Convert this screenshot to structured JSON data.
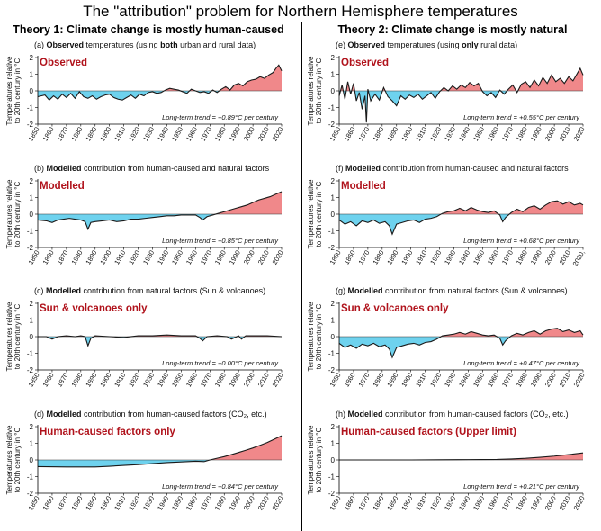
{
  "title": "The \"attribution\" problem for Northern Hemisphere temperatures",
  "theories": [
    {
      "title": "Theory 1: Climate change is mostly human-caused"
    },
    {
      "title": "Theory 2: Climate change is mostly natural"
    }
  ],
  "colors": {
    "positive": "#f0888a",
    "negative": "#6ed2ee",
    "line": "#1a1a1a",
    "badge": "#b0121b"
  },
  "chart_data": [
    {
      "type": "area",
      "id": "a",
      "title_prefix": "(a) ",
      "title_bold": "Observed",
      "title_rest": " temperatures (using ",
      "title_bold2": "both",
      "title_rest2": " urban and rural data)",
      "badge": "Observed",
      "ylabel": [
        "Temperatures relative",
        "to 20th century in °C"
      ],
      "trend": "Long-term trend = +0.89°C per century",
      "ylim": [
        -2,
        2
      ],
      "yticks": [
        2,
        1,
        0,
        -1,
        -2
      ],
      "xlim": [
        1850,
        2020
      ],
      "xticks": [
        "1850",
        "1860",
        "1870",
        "1880",
        "1890",
        "1900",
        "1910",
        "1920",
        "1930",
        "1940",
        "1950",
        "1960",
        "1970",
        "1980",
        "1990",
        "2000",
        "2010",
        "2020"
      ],
      "x": [
        1850,
        1855,
        1858,
        1861,
        1864,
        1867,
        1870,
        1873,
        1876,
        1879,
        1882,
        1885,
        1888,
        1891,
        1894,
        1897,
        1900,
        1903,
        1906,
        1909,
        1912,
        1915,
        1918,
        1921,
        1924,
        1927,
        1930,
        1933,
        1936,
        1939,
        1942,
        1945,
        1948,
        1951,
        1954,
        1957,
        1960,
        1963,
        1966,
        1969,
        1972,
        1975,
        1978,
        1981,
        1984,
        1987,
        1990,
        1993,
        1996,
        1999,
        2002,
        2005,
        2008,
        2011,
        2014,
        2016,
        2018,
        2020
      ],
      "values": [
        -0.35,
        -0.25,
        -0.55,
        -0.3,
        -0.5,
        -0.2,
        -0.4,
        -0.15,
        -0.45,
        -0.05,
        -0.35,
        -0.45,
        -0.3,
        -0.5,
        -0.35,
        -0.25,
        -0.2,
        -0.4,
        -0.5,
        -0.55,
        -0.4,
        -0.25,
        -0.45,
        -0.2,
        -0.3,
        -0.1,
        -0.05,
        -0.15,
        -0.1,
        0.05,
        0.15,
        0.1,
        0.05,
        -0.05,
        -0.15,
        0.1,
        0.0,
        -0.1,
        -0.05,
        -0.15,
        0.05,
        -0.1,
        0.1,
        0.25,
        0.05,
        0.35,
        0.45,
        0.3,
        0.55,
        0.65,
        0.7,
        0.85,
        0.75,
        0.95,
        1.1,
        1.35,
        1.55,
        1.2
      ]
    },
    {
      "type": "area",
      "id": "b",
      "title_prefix": "(b) ",
      "title_bold": "Modelled",
      "title_rest": " contribution from human-caused and natural factors",
      "title_bold2": "",
      "title_rest2": "",
      "badge": "Modelled",
      "ylabel": [
        "Temperatures relative",
        "to 20th century in °C"
      ],
      "trend": "Long-term trend = +0.85°C per century",
      "ylim": [
        -2,
        2
      ],
      "yticks": [
        2,
        1,
        0,
        -1,
        -2
      ],
      "xlim": [
        1850,
        2020
      ],
      "xticks": [
        "1850",
        "1860",
        "1870",
        "1880",
        "1890",
        "1900",
        "1910",
        "1920",
        "1930",
        "1940",
        "1950",
        "1960",
        "1970",
        "1980",
        "1990",
        "2000",
        "2010",
        "2020"
      ],
      "x": [
        1850,
        1856,
        1860,
        1864,
        1868,
        1872,
        1876,
        1880,
        1883,
        1885,
        1887,
        1890,
        1895,
        1900,
        1905,
        1910,
        1915,
        1920,
        1925,
        1930,
        1935,
        1940,
        1945,
        1950,
        1955,
        1960,
        1963,
        1965,
        1968,
        1972,
        1976,
        1980,
        1984,
        1988,
        1992,
        1996,
        2000,
        2004,
        2008,
        2012,
        2016,
        2020
      ],
      "values": [
        -0.35,
        -0.4,
        -0.5,
        -0.35,
        -0.3,
        -0.25,
        -0.3,
        -0.35,
        -0.45,
        -0.9,
        -0.5,
        -0.45,
        -0.4,
        -0.35,
        -0.45,
        -0.4,
        -0.3,
        -0.3,
        -0.25,
        -0.2,
        -0.15,
        -0.1,
        -0.1,
        -0.05,
        -0.05,
        -0.05,
        -0.2,
        -0.35,
        -0.15,
        -0.05,
        0.05,
        0.15,
        0.25,
        0.35,
        0.45,
        0.55,
        0.7,
        0.85,
        0.95,
        1.05,
        1.2,
        1.35
      ]
    },
    {
      "type": "area",
      "id": "c",
      "title_prefix": "(c) ",
      "title_bold": "Modelled",
      "title_rest": " contribution from natural factors (Sun & volcanoes)",
      "title_bold2": "",
      "title_rest2": "",
      "badge": "Sun & volcanoes only",
      "ylabel": [
        "Temperatures relative",
        "to 20th century in °C"
      ],
      "trend": "Long-term trend = +0.00°C per century",
      "ylim": [
        -2,
        2
      ],
      "yticks": [
        2,
        1,
        0,
        -1,
        -2
      ],
      "xlim": [
        1850,
        2020
      ],
      "xticks": [
        "1850",
        "1860",
        "1870",
        "1880",
        "1890",
        "1900",
        "1910",
        "1920",
        "1930",
        "1940",
        "1950",
        "1960",
        "1970",
        "1980",
        "1990",
        "2000",
        "2010",
        "2020"
      ],
      "x": [
        1850,
        1856,
        1860,
        1864,
        1870,
        1876,
        1880,
        1883,
        1885,
        1887,
        1890,
        1900,
        1910,
        1920,
        1930,
        1940,
        1950,
        1960,
        1963,
        1965,
        1968,
        1975,
        1982,
        1985,
        1990,
        1992,
        1995,
        2000,
        2010,
        2020
      ],
      "values": [
        0.0,
        0.0,
        -0.15,
        0.0,
        0.05,
        0.0,
        0.05,
        0.0,
        -0.55,
        -0.1,
        0.05,
        0.0,
        -0.05,
        0.05,
        0.05,
        0.1,
        0.05,
        0.05,
        -0.1,
        -0.25,
        0.0,
        0.05,
        0.0,
        -0.15,
        0.05,
        -0.15,
        0.05,
        0.05,
        0.05,
        0.0
      ]
    },
    {
      "type": "area",
      "id": "d",
      "title_prefix": "(d) ",
      "title_bold": "Modelled",
      "title_rest": " contribution from human-caused factors (CO₂, etc.)",
      "title_bold2": "",
      "title_rest2": "",
      "badge": "Human-caused factors only",
      "ylabel": [
        "Temperatures relative",
        "to 20th century in °C"
      ],
      "trend": "Long-term trend = +0.84°C per century",
      "ylim": [
        -2,
        2
      ],
      "yticks": [
        2,
        1,
        0,
        -1,
        -2
      ],
      "xlim": [
        1850,
        2020
      ],
      "xticks": [
        "1850",
        "1860",
        "1870",
        "1880",
        "1890",
        "1900",
        "1910",
        "1920",
        "1930",
        "1940",
        "1950",
        "1960",
        "1970",
        "1980",
        "1990",
        "2000",
        "2010",
        "2020"
      ],
      "x": [
        1850,
        1870,
        1890,
        1900,
        1910,
        1920,
        1930,
        1940,
        1950,
        1960,
        1966,
        1970,
        1975,
        1980,
        1985,
        1990,
        1995,
        2000,
        2005,
        2010,
        2015,
        2020
      ],
      "values": [
        -0.4,
        -0.42,
        -0.42,
        -0.38,
        -0.33,
        -0.28,
        -0.22,
        -0.16,
        -0.12,
        -0.08,
        -0.1,
        0.0,
        0.1,
        0.2,
        0.32,
        0.45,
        0.58,
        0.72,
        0.88,
        1.05,
        1.25,
        1.45
      ]
    },
    {
      "type": "area",
      "id": "e",
      "title_prefix": "(e) ",
      "title_bold": "Observed",
      "title_rest": " temperatures (using ",
      "title_bold2": "only",
      "title_rest2": " rural data)",
      "badge": "Observed",
      "ylabel": [
        "Temperatures relative",
        "to 20th century in °C"
      ],
      "trend": "Long-term trend = +0.55°C per century",
      "ylim": [
        -2,
        2
      ],
      "yticks": [
        2,
        1,
        0,
        -1,
        -2
      ],
      "xlim": [
        1850,
        2020
      ],
      "xticks": [
        "1850",
        "1860",
        "1870",
        "1880",
        "1890",
        "1900",
        "1910",
        "1920",
        "1930",
        "1940",
        "1950",
        "1960",
        "1970",
        "1980",
        "1990",
        "2000",
        "2010",
        "2020"
      ],
      "x": [
        1850,
        1852,
        1854,
        1856,
        1858,
        1860,
        1862,
        1864,
        1866,
        1868,
        1869,
        1870,
        1872,
        1875,
        1878,
        1881,
        1884,
        1887,
        1890,
        1893,
        1896,
        1899,
        1902,
        1905,
        1908,
        1911,
        1914,
        1917,
        1920,
        1923,
        1926,
        1929,
        1932,
        1935,
        1938,
        1941,
        1944,
        1947,
        1950,
        1953,
        1956,
        1959,
        1962,
        1965,
        1968,
        1971,
        1974,
        1977,
        1980,
        1983,
        1986,
        1989,
        1992,
        1995,
        1998,
        2001,
        2004,
        2007,
        2010,
        2013,
        2016,
        2018,
        2020
      ],
      "values": [
        -0.3,
        0.35,
        -0.5,
        0.55,
        -0.2,
        0.45,
        -0.6,
        -0.1,
        -1.1,
        -0.3,
        -1.9,
        0.1,
        -0.6,
        -0.2,
        -0.55,
        0.2,
        -0.35,
        -0.6,
        -0.9,
        -0.3,
        -0.5,
        -0.25,
        -0.4,
        -0.2,
        -0.5,
        -0.3,
        -0.1,
        -0.45,
        -0.05,
        0.2,
        0.0,
        0.3,
        0.1,
        0.35,
        0.2,
        0.5,
        0.3,
        0.45,
        -0.05,
        -0.3,
        -0.1,
        -0.4,
        0.05,
        -0.2,
        0.1,
        0.35,
        -0.1,
        0.4,
        0.55,
        0.2,
        0.65,
        0.3,
        0.8,
        0.45,
        0.95,
        0.55,
        0.75,
        0.45,
        0.85,
        0.6,
        1.05,
        1.35,
        0.95
      ]
    },
    {
      "type": "area",
      "id": "f",
      "title_prefix": "(f) ",
      "title_bold": "Modelled",
      "title_rest": " contribution from human-caused and natural factors",
      "title_bold2": "",
      "title_rest2": "",
      "badge": "Modelled",
      "ylabel": [
        "Temperatures relative",
        "to 20th century in °C"
      ],
      "trend": "Long-term trend = +0.68°C per century",
      "ylim": [
        -2,
        2
      ],
      "yticks": [
        2,
        1,
        0,
        -1,
        -2
      ],
      "xlim": [
        1850,
        2020
      ],
      "xticks": [
        "1850",
        "1860",
        "1870",
        "1880",
        "1890",
        "1900",
        "1910",
        "1920",
        "1930",
        "1940",
        "1950",
        "1960",
        "1970",
        "1980",
        "1990",
        "2000",
        "2010",
        "2020,"
      ],
      "x": [
        1850,
        1854,
        1858,
        1862,
        1866,
        1870,
        1874,
        1878,
        1882,
        1885,
        1887,
        1890,
        1894,
        1898,
        1902,
        1906,
        1910,
        1914,
        1918,
        1922,
        1926,
        1930,
        1934,
        1938,
        1942,
        1946,
        1950,
        1954,
        1958,
        1962,
        1964,
        1966,
        1970,
        1974,
        1978,
        1982,
        1986,
        1990,
        1994,
        1998,
        2002,
        2006,
        2010,
        2014,
        2018,
        2020
      ],
      "values": [
        -0.35,
        -0.6,
        -0.45,
        -0.7,
        -0.4,
        -0.5,
        -0.35,
        -0.55,
        -0.45,
        -0.7,
        -1.2,
        -0.6,
        -0.5,
        -0.4,
        -0.35,
        -0.5,
        -0.3,
        -0.25,
        -0.15,
        0.05,
        0.15,
        0.2,
        0.35,
        0.2,
        0.4,
        0.25,
        0.15,
        0.1,
        0.2,
        -0.05,
        -0.45,
        -0.2,
        0.1,
        0.3,
        0.15,
        0.4,
        0.5,
        0.3,
        0.55,
        0.75,
        0.8,
        0.6,
        0.75,
        0.55,
        0.65,
        0.55
      ]
    },
    {
      "type": "area",
      "id": "g",
      "title_prefix": "(g) ",
      "title_bold": "Modelled",
      "title_rest": " contribution from natural factors (Sun & volcanoes)",
      "title_bold2": "",
      "title_rest2": "",
      "badge": "Sun & volcanoes only",
      "ylabel": [
        "Temperatures relative",
        "to 20th century in °C"
      ],
      "trend": "Long-term trend = +0.47°C per century",
      "ylim": [
        -2,
        2
      ],
      "yticks": [
        2,
        1,
        0,
        -1,
        -2
      ],
      "xlim": [
        1850,
        2020
      ],
      "xticks": [
        "1850",
        "1860",
        "1870",
        "1880",
        "1890",
        "1900",
        "1910",
        "1920",
        "1930",
        "1940",
        "1950",
        "1960",
        "1970",
        "1980",
        "1990",
        "2000",
        "2010",
        "2020"
      ],
      "x": [
        1850,
        1854,
        1858,
        1862,
        1866,
        1870,
        1874,
        1878,
        1882,
        1885,
        1887,
        1890,
        1894,
        1898,
        1902,
        1906,
        1910,
        1914,
        1918,
        1922,
        1926,
        1930,
        1934,
        1938,
        1942,
        1946,
        1950,
        1954,
        1958,
        1962,
        1964,
        1966,
        1970,
        1974,
        1978,
        1982,
        1986,
        1990,
        1994,
        1998,
        2002,
        2006,
        2010,
        2014,
        2018,
        2020
      ],
      "values": [
        -0.4,
        -0.65,
        -0.5,
        -0.7,
        -0.45,
        -0.55,
        -0.4,
        -0.6,
        -0.5,
        -0.75,
        -1.25,
        -0.65,
        -0.55,
        -0.45,
        -0.4,
        -0.5,
        -0.35,
        -0.3,
        -0.15,
        0.05,
        0.1,
        0.15,
        0.25,
        0.15,
        0.3,
        0.2,
        0.1,
        0.05,
        0.1,
        -0.1,
        -0.5,
        -0.25,
        0.05,
        0.2,
        0.1,
        0.25,
        0.35,
        0.15,
        0.35,
        0.45,
        0.5,
        0.3,
        0.4,
        0.25,
        0.35,
        0.1
      ]
    },
    {
      "type": "area",
      "id": "h",
      "title_prefix": "(h) ",
      "title_bold": "Modelled",
      "title_rest": " contribution from human-caused factors (CO₂, etc.)",
      "title_bold2": "",
      "title_rest2": "",
      "badge": "Human-caused factors (Upper limit)",
      "ylabel": [
        "Temperatures relative",
        "to 20th century in °C"
      ],
      "trend": "Long-term trend = +0.21°C per century",
      "ylim": [
        -2,
        2
      ],
      "yticks": [
        2,
        1,
        0,
        -1,
        -2
      ],
      "xlim": [
        1850,
        2020
      ],
      "xticks": [
        "1850",
        "1860",
        "1870",
        "1880",
        "1890",
        "1900",
        "1910",
        "1920",
        "1930",
        "1940",
        "1950",
        "1960",
        "1970",
        "1980",
        "1990",
        "2000",
        "2010",
        "2020"
      ],
      "x": [
        1850,
        1880,
        1900,
        1920,
        1940,
        1960,
        1970,
        1980,
        1990,
        2000,
        2010,
        2020
      ],
      "values": [
        0.0,
        0.0,
        0.0,
        0.01,
        0.02,
        0.03,
        0.06,
        0.1,
        0.16,
        0.23,
        0.32,
        0.42
      ]
    }
  ]
}
